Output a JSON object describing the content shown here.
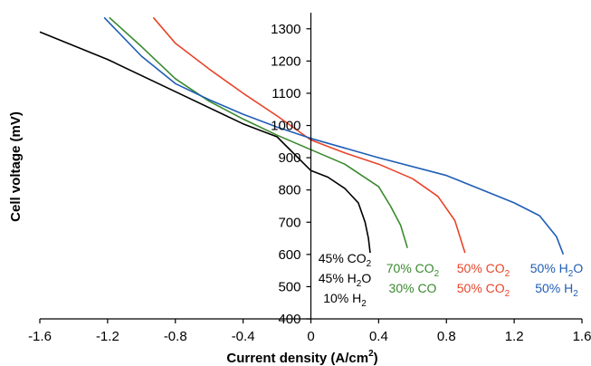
{
  "chart_data": {
    "type": "line",
    "xlabel": "Current density (A/cm",
    "xlabel_sup": "2",
    "xlabel_tail": ")",
    "ylabel": "Cell voltage (mV)",
    "xlim": [
      -1.6,
      1.6
    ],
    "ylim": [
      400,
      1350
    ],
    "x_ticks": [
      -1.6,
      -1.2,
      -0.8,
      -0.4,
      0,
      0.4,
      0.8,
      1.2,
      1.6
    ],
    "x_tick_labels": [
      "-1.6",
      "-1.2",
      "-0.8",
      "-0.4",
      "0",
      "0.4",
      "0.8",
      "1.2",
      "1.6"
    ],
    "y_ticks": [
      400,
      500,
      600,
      700,
      800,
      900,
      1000,
      1100,
      1200,
      1300
    ],
    "y_tick_labels": [
      "400",
      "500",
      "600",
      "700",
      "800",
      "900",
      "1000",
      "1100",
      "1200",
      "1300"
    ],
    "grid": false,
    "legend": "none",
    "series": [
      {
        "color": "#000000",
        "points": [
          [
            -1.6,
            1290
          ],
          [
            -1.2,
            1205
          ],
          [
            -0.8,
            1105
          ],
          [
            -0.4,
            1005
          ],
          [
            -0.2,
            965
          ],
          [
            0,
            860
          ],
          [
            0.1,
            840
          ],
          [
            0.2,
            805
          ],
          [
            0.28,
            760
          ],
          [
            0.32,
            700
          ],
          [
            0.34,
            650
          ],
          [
            0.35,
            605
          ]
        ]
      },
      {
        "color": "#3a8a2e",
        "points": [
          [
            -1.19,
            1335
          ],
          [
            -1.0,
            1245
          ],
          [
            -0.8,
            1145
          ],
          [
            -0.6,
            1075
          ],
          [
            -0.4,
            1020
          ],
          [
            -0.2,
            970
          ],
          [
            0,
            925
          ],
          [
            0.2,
            880
          ],
          [
            0.4,
            810
          ],
          [
            0.47,
            750
          ],
          [
            0.53,
            690
          ],
          [
            0.57,
            620
          ]
        ]
      },
      {
        "color": "#e8452a",
        "points": [
          [
            -0.93,
            1335
          ],
          [
            -0.8,
            1255
          ],
          [
            -0.6,
            1175
          ],
          [
            -0.4,
            1100
          ],
          [
            -0.2,
            1030
          ],
          [
            0,
            955
          ],
          [
            0.2,
            915
          ],
          [
            0.4,
            880
          ],
          [
            0.6,
            835
          ],
          [
            0.75,
            780
          ],
          [
            0.85,
            705
          ],
          [
            0.91,
            605
          ]
        ]
      },
      {
        "color": "#1f5db5",
        "points": [
          [
            -1.22,
            1335
          ],
          [
            -1.0,
            1215
          ],
          [
            -0.8,
            1130
          ],
          [
            -0.6,
            1080
          ],
          [
            -0.4,
            1035
          ],
          [
            -0.2,
            995
          ],
          [
            0,
            960
          ],
          [
            0.4,
            900
          ],
          [
            0.8,
            845
          ],
          [
            1.2,
            760
          ],
          [
            1.35,
            720
          ],
          [
            1.45,
            655
          ],
          [
            1.49,
            600
          ]
        ]
      }
    ],
    "annotations": [
      {
        "color": "#000000",
        "lines": [
          {
            "text": "45% CO",
            "sub": "2"
          },
          {
            "text": "45% H",
            "sub": "2",
            "tail": "O"
          },
          {
            "text": "10% H",
            "sub": "2"
          }
        ]
      },
      {
        "color": "#3a8a2e",
        "lines": [
          {
            "text": "70% CO",
            "sub": "2"
          },
          {
            "text": "30% CO"
          }
        ]
      },
      {
        "color": "#e8452a",
        "lines": [
          {
            "text": "50% CO",
            "sub": "2"
          },
          {
            "text": "50% CO",
            "sub": "2"
          }
        ]
      },
      {
        "color": "#1f5db5",
        "lines": [
          {
            "text": "50% H",
            "sub": "2",
            "tail": "O"
          },
          {
            "text": "50% H",
            "sub": "2"
          }
        ]
      }
    ]
  }
}
